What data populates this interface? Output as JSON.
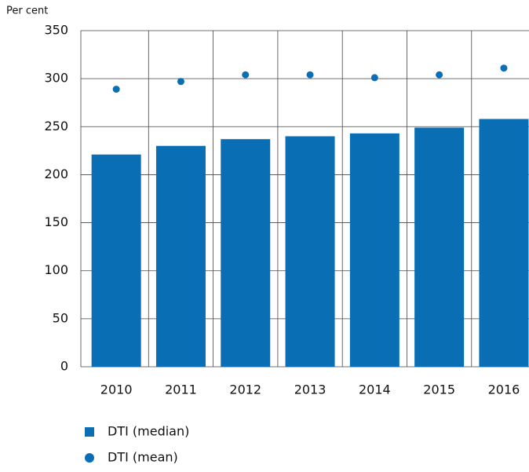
{
  "chart_data": {
    "type": "bar",
    "y_label": "Per cent",
    "categories": [
      "2010",
      "2011",
      "2012",
      "2013",
      "2014",
      "2015",
      "2016"
    ],
    "series": [
      {
        "name": "DTI (median)",
        "kind": "bar",
        "color": "#0a6eb4",
        "values": [
          221,
          230,
          237,
          240,
          243,
          249,
          258
        ]
      },
      {
        "name": "DTI (mean)",
        "kind": "dot",
        "color": "#0a6eb4",
        "values": [
          289,
          297,
          304,
          304,
          301,
          304,
          311
        ]
      }
    ],
    "ylim": [
      0,
      350
    ],
    "yticks": [
      0,
      50,
      100,
      150,
      200,
      250,
      300,
      350
    ],
    "grid": true
  }
}
